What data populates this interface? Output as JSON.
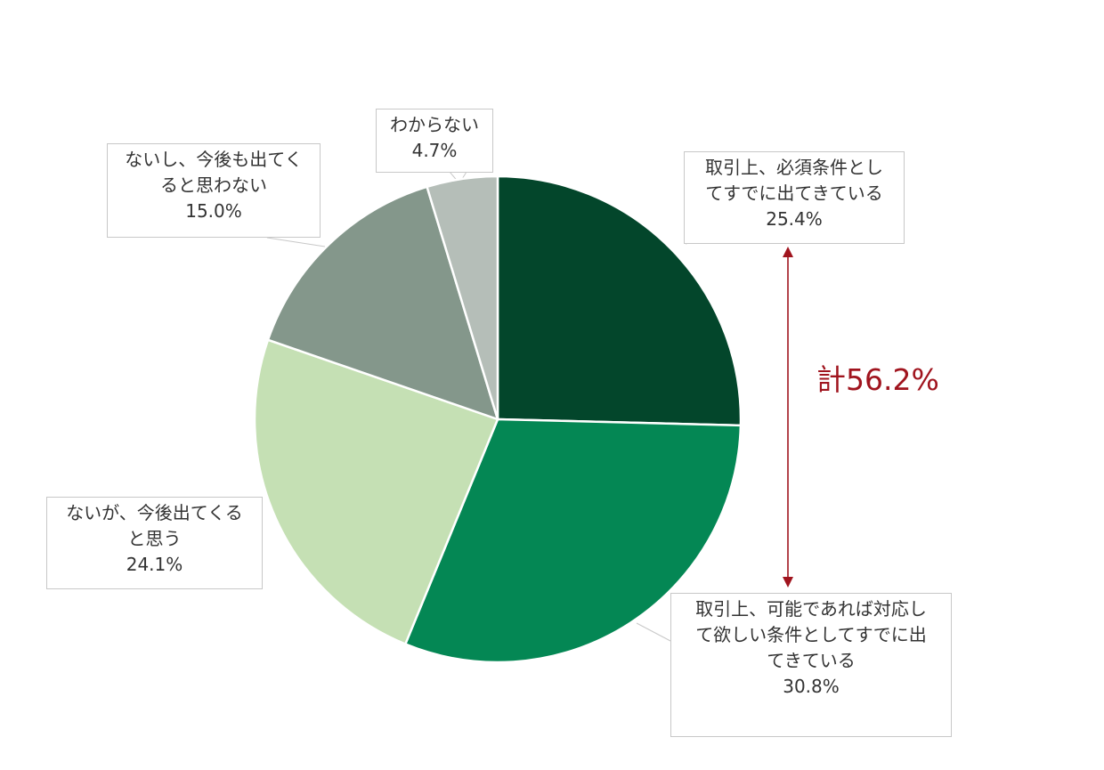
{
  "chart_data": {
    "type": "pie",
    "slices": [
      {
        "label_lines": [
          "取引上、必須条件とし",
          "てすでに出てきている"
        ],
        "value": 25.4,
        "value_label": "25.4%",
        "color": "#03462b"
      },
      {
        "label_lines": [
          "取引上、可能であれば対応し",
          "て欲しい条件としてすでに出",
          "てきている"
        ],
        "value": 30.8,
        "value_label": "30.8%",
        "color": "#048754"
      },
      {
        "label_lines": [
          "ないが、今後出てくる",
          "と思う"
        ],
        "value": 24.1,
        "value_label": "24.1%",
        "color": "#c5e0b4"
      },
      {
        "label_lines": [
          "ないし、今後も出てく",
          "ると思わない"
        ],
        "value": 15.0,
        "value_label": "15.0%",
        "color": "#84978b"
      },
      {
        "label_lines": [
          "わからない"
        ],
        "value": 4.7,
        "value_label": "4.7%",
        "color": "#b5beb8"
      }
    ],
    "annotation": {
      "text": "計56.2%",
      "color": "#a0141e"
    }
  }
}
